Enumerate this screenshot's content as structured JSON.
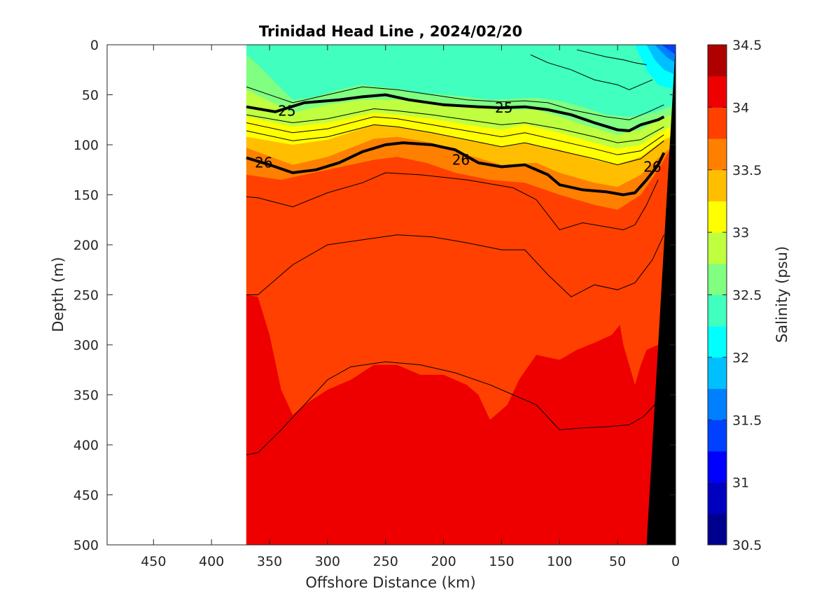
{
  "chart_data": {
    "type": "heatmap",
    "title": "Trinidad Head Line , 2024/02/20",
    "xlabel": "Offshore Distance (km)",
    "ylabel": "Depth (m)",
    "xlim": [
      490,
      0
    ],
    "ylim": [
      0,
      500
    ],
    "x_reversed": true,
    "y_reversed": true,
    "x_ticks": [
      "450",
      "400",
      "350",
      "300",
      "250",
      "200",
      "150",
      "100",
      "50",
      "0"
    ],
    "y_ticks": [
      "0",
      "50",
      "100",
      "150",
      "200",
      "250",
      "300",
      "350",
      "400",
      "450",
      "500"
    ],
    "grid": false,
    "colorbar": {
      "label": "Salinity (psu)",
      "range": [
        30.5,
        34.5
      ],
      "ticks": [
        "30.5",
        "31",
        "31.5",
        "32",
        "32.5",
        "33",
        "33.5",
        "34",
        "34.5"
      ],
      "colors": [
        "#00008f",
        "#0000bf",
        "#0000ff",
        "#0040ff",
        "#0080ff",
        "#00bfff",
        "#00ffff",
        "#40ffbf",
        "#80ff80",
        "#bfff40",
        "#ffff00",
        "#ffbf00",
        "#ff8000",
        "#ff4000",
        "#ef0000",
        "#af0000"
      ]
    },
    "data_extent_km": [
      370,
      0
    ],
    "salinity_layers": [
      {
        "salinity": "32.25-32.5",
        "upper_boundary_depth": [
          [
            370,
            0
          ],
          [
            0,
            0
          ]
        ]
      },
      {
        "salinity": "32.5-32.75",
        "upper_boundary_depth": [
          [
            370,
            10
          ],
          [
            360,
            20
          ],
          [
            345,
            38
          ],
          [
            330,
            55
          ],
          [
            310,
            52
          ],
          [
            290,
            45
          ],
          [
            270,
            40
          ],
          [
            240,
            44
          ],
          [
            220,
            48
          ],
          [
            200,
            50
          ],
          [
            180,
            52
          ],
          [
            160,
            55
          ],
          [
            140,
            54
          ],
          [
            120,
            53
          ],
          [
            100,
            56
          ],
          [
            80,
            62
          ],
          [
            60,
            70
          ],
          [
            40,
            72
          ],
          [
            20,
            68
          ],
          [
            5,
            62
          ],
          [
            0,
            60
          ]
        ]
      },
      {
        "salinity": "32.75-33",
        "upper_boundary_depth": [
          [
            370,
            45
          ],
          [
            330,
            68
          ],
          [
            300,
            60
          ],
          [
            270,
            55
          ],
          [
            240,
            55
          ],
          [
            210,
            60
          ],
          [
            180,
            62
          ],
          [
            150,
            65
          ],
          [
            120,
            65
          ],
          [
            100,
            72
          ],
          [
            80,
            80
          ],
          [
            50,
            90
          ],
          [
            30,
            85
          ],
          [
            10,
            72
          ],
          [
            0,
            70
          ]
        ]
      },
      {
        "salinity": "33-33.25",
        "upper_boundary_depth": [
          [
            370,
            72
          ],
          [
            330,
            82
          ],
          [
            300,
            78
          ],
          [
            260,
            68
          ],
          [
            240,
            70
          ],
          [
            210,
            74
          ],
          [
            180,
            80
          ],
          [
            150,
            85
          ],
          [
            130,
            80
          ],
          [
            100,
            88
          ],
          [
            70,
            98
          ],
          [
            50,
            104
          ],
          [
            30,
            100
          ],
          [
            10,
            85
          ],
          [
            0,
            80
          ]
        ]
      },
      {
        "salinity": "33.25-33.5",
        "upper_boundary_depth": [
          [
            370,
            92
          ],
          [
            330,
            100
          ],
          [
            300,
            95
          ],
          [
            260,
            80
          ],
          [
            240,
            82
          ],
          [
            210,
            88
          ],
          [
            180,
            95
          ],
          [
            150,
            102
          ],
          [
            130,
            98
          ],
          [
            100,
            105
          ],
          [
            70,
            115
          ],
          [
            50,
            120
          ],
          [
            30,
            112
          ],
          [
            10,
            95
          ],
          [
            0,
            90
          ]
        ]
      },
      {
        "salinity": "33.5-33.75",
        "upper_boundary_depth": [
          [
            370,
            103
          ],
          [
            330,
            120
          ],
          [
            300,
            112
          ],
          [
            260,
            94
          ],
          [
            240,
            92
          ],
          [
            210,
            98
          ],
          [
            180,
            110
          ],
          [
            150,
            120
          ],
          [
            120,
            118
          ],
          [
            100,
            128
          ],
          [
            70,
            138
          ],
          [
            50,
            142
          ],
          [
            30,
            130
          ],
          [
            10,
            108
          ],
          [
            0,
            100
          ]
        ]
      },
      {
        "salinity": "33.75-34",
        "upper_boundary_depth": [
          [
            370,
            130
          ],
          [
            340,
            135
          ],
          [
            320,
            130
          ],
          [
            300,
            125
          ],
          [
            260,
            115
          ],
          [
            240,
            112
          ],
          [
            215,
            118
          ],
          [
            190,
            128
          ],
          [
            160,
            135
          ],
          [
            130,
            138
          ],
          [
            100,
            150
          ],
          [
            70,
            160
          ],
          [
            50,
            165
          ],
          [
            30,
            150
          ],
          [
            15,
            125
          ],
          [
            5,
            105
          ],
          [
            0,
            95
          ]
        ]
      },
      {
        "salinity": "34-34.25",
        "upper_boundary_depth": [
          [
            370,
            250
          ],
          [
            360,
            252
          ],
          [
            350,
            290
          ],
          [
            340,
            345
          ],
          [
            330,
            370
          ],
          [
            320,
            360
          ],
          [
            300,
            345
          ],
          [
            280,
            335
          ],
          [
            260,
            320
          ],
          [
            240,
            320
          ],
          [
            220,
            330
          ],
          [
            200,
            330
          ],
          [
            180,
            340
          ],
          [
            170,
            350
          ],
          [
            160,
            375
          ],
          [
            145,
            360
          ],
          [
            135,
            335
          ],
          [
            120,
            310
          ],
          [
            100,
            315
          ],
          [
            85,
            305
          ],
          [
            70,
            298
          ],
          [
            55,
            290
          ],
          [
            48,
            280
          ],
          [
            45,
            300
          ],
          [
            40,
            320
          ],
          [
            35,
            340
          ],
          [
            30,
            320
          ],
          [
            25,
            305
          ],
          [
            15,
            300
          ],
          [
            5,
            290
          ],
          [
            0,
            280
          ]
        ]
      }
    ],
    "thin_isopycnals_depth": [
      [
        [
          370,
          42
        ],
        [
          330,
          58
        ],
        [
          300,
          50
        ],
        [
          270,
          42
        ],
        [
          240,
          45
        ],
        [
          210,
          50
        ],
        [
          180,
          55
        ],
        [
          150,
          57
        ],
        [
          130,
          56
        ],
        [
          110,
          58
        ],
        [
          90,
          65
        ],
        [
          60,
          72
        ],
        [
          40,
          75
        ],
        [
          25,
          68
        ],
        [
          10,
          60
        ]
      ],
      [
        [
          370,
          70
        ],
        [
          330,
          78
        ],
        [
          300,
          74
        ],
        [
          260,
          64
        ],
        [
          240,
          66
        ],
        [
          210,
          70
        ],
        [
          180,
          75
        ],
        [
          150,
          80
        ],
        [
          130,
          78
        ],
        [
          100,
          84
        ],
        [
          70,
          92
        ],
        [
          50,
          98
        ],
        [
          30,
          95
        ],
        [
          10,
          82
        ]
      ],
      [
        [
          370,
          78
        ],
        [
          330,
          88
        ],
        [
          300,
          84
        ],
        [
          260,
          72
        ],
        [
          240,
          74
        ],
        [
          210,
          80
        ],
        [
          180,
          86
        ],
        [
          150,
          92
        ],
        [
          130,
          88
        ],
        [
          100,
          96
        ],
        [
          70,
          104
        ],
        [
          50,
          110
        ],
        [
          30,
          106
        ],
        [
          10,
          90
        ]
      ],
      [
        [
          370,
          86
        ],
        [
          330,
          96
        ],
        [
          300,
          92
        ],
        [
          260,
          80
        ],
        [
          240,
          82
        ],
        [
          210,
          88
        ],
        [
          180,
          95
        ],
        [
          150,
          102
        ],
        [
          130,
          98
        ],
        [
          100,
          106
        ],
        [
          70,
          114
        ],
        [
          50,
          120
        ],
        [
          30,
          114
        ],
        [
          10,
          96
        ]
      ],
      [
        [
          370,
          152
        ],
        [
          360,
          153
        ],
        [
          330,
          162
        ],
        [
          300,
          148
        ],
        [
          270,
          138
        ],
        [
          250,
          128
        ],
        [
          220,
          130
        ],
        [
          180,
          135
        ],
        [
          140,
          143
        ],
        [
          120,
          155
        ],
        [
          100,
          185
        ],
        [
          80,
          178
        ],
        [
          60,
          182
        ],
        [
          45,
          185
        ],
        [
          35,
          180
        ],
        [
          25,
          160
        ],
        [
          15,
          135
        ]
      ],
      [
        [
          370,
          250
        ],
        [
          360,
          250
        ],
        [
          330,
          220
        ],
        [
          300,
          200
        ],
        [
          270,
          195
        ],
        [
          240,
          190
        ],
        [
          210,
          192
        ],
        [
          180,
          198
        ],
        [
          150,
          205
        ],
        [
          130,
          205
        ],
        [
          110,
          230
        ],
        [
          90,
          252
        ],
        [
          70,
          240
        ],
        [
          50,
          245
        ],
        [
          35,
          238
        ],
        [
          20,
          215
        ],
        [
          10,
          190
        ]
      ],
      [
        [
          370,
          410
        ],
        [
          360,
          408
        ],
        [
          340,
          385
        ],
        [
          320,
          360
        ],
        [
          300,
          335
        ],
        [
          280,
          322
        ],
        [
          250,
          317
        ],
        [
          220,
          320
        ],
        [
          190,
          328
        ],
        [
          160,
          340
        ],
        [
          140,
          350
        ],
        [
          120,
          360
        ],
        [
          100,
          385
        ],
        [
          80,
          383
        ],
        [
          60,
          382
        ],
        [
          40,
          380
        ],
        [
          28,
          372
        ],
        [
          18,
          360
        ]
      ],
      [
        [
          125,
          10
        ],
        [
          110,
          18
        ],
        [
          90,
          25
        ],
        [
          70,
          35
        ],
        [
          50,
          40
        ],
        [
          40,
          45
        ],
        [
          30,
          40
        ],
        [
          20,
          35
        ]
      ],
      [
        [
          85,
          5
        ],
        [
          60,
          12
        ],
        [
          45,
          15
        ],
        [
          35,
          18
        ],
        [
          25,
          20
        ]
      ]
    ],
    "bold_isopycnals": [
      {
        "label": "25",
        "depth": [
          [
            370,
            62
          ],
          [
            345,
            67
          ],
          [
            320,
            58
          ],
          [
            290,
            55
          ],
          [
            270,
            52
          ],
          [
            250,
            50
          ],
          [
            230,
            55
          ],
          [
            200,
            60
          ],
          [
            170,
            62
          ],
          [
            150,
            63
          ],
          [
            130,
            62
          ],
          [
            110,
            65
          ],
          [
            90,
            70
          ],
          [
            70,
            78
          ],
          [
            50,
            85
          ],
          [
            40,
            86
          ],
          [
            30,
            80
          ],
          [
            15,
            75
          ],
          [
            10,
            72
          ]
        ],
        "label_positions": [
          [
            335,
            66
          ],
          [
            148,
            63
          ]
        ]
      },
      {
        "label": "26",
        "depth": [
          [
            370,
            113
          ],
          [
            350,
            120
          ],
          [
            330,
            128
          ],
          [
            310,
            125
          ],
          [
            290,
            118
          ],
          [
            270,
            107
          ],
          [
            250,
            100
          ],
          [
            235,
            98
          ],
          [
            210,
            100
          ],
          [
            190,
            105
          ],
          [
            170,
            118
          ],
          [
            150,
            122
          ],
          [
            130,
            120
          ],
          [
            110,
            130
          ],
          [
            100,
            140
          ],
          [
            80,
            145
          ],
          [
            60,
            147
          ],
          [
            45,
            150
          ],
          [
            35,
            148
          ],
          [
            25,
            135
          ],
          [
            15,
            120
          ],
          [
            10,
            108
          ]
        ],
        "label_positions": [
          [
            355,
            118
          ],
          [
            185,
            115
          ],
          [
            20,
            122
          ]
        ]
      }
    ],
    "shelf_boundary": [
      [
        0,
        0
      ],
      [
        25,
        500
      ]
    ]
  }
}
